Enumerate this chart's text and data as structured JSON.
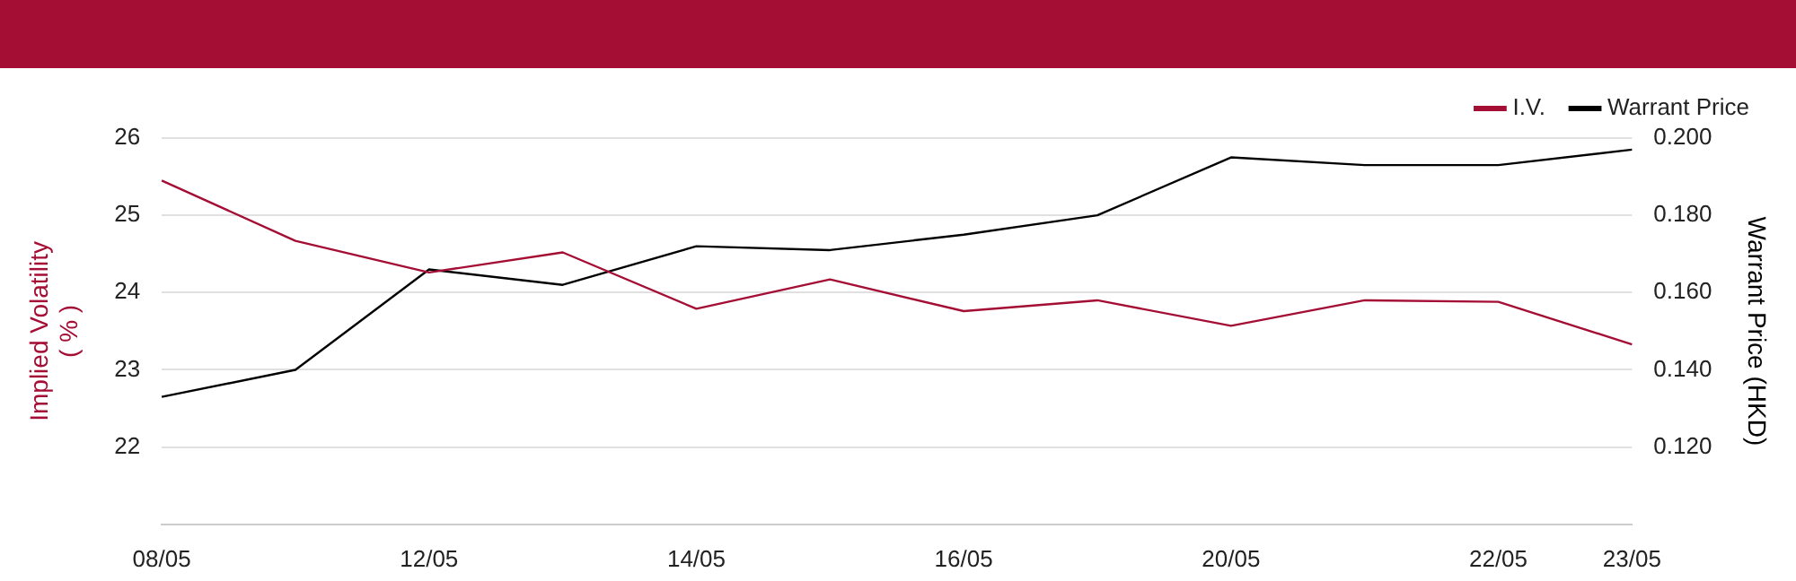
{
  "chart_data": {
    "type": "line",
    "ylabel": "Implied Volatility ( % )",
    "y2label": "Warrant Price (HKD)",
    "categories": [
      "08/05",
      null,
      "12/05",
      null,
      "14/05",
      null,
      "16/05",
      null,
      "20/05",
      null,
      "22/05",
      "23/05"
    ],
    "series": [
      {
        "name": "I.V.",
        "color": "#a50e34",
        "values": [
          25.45,
          24.67,
          24.26,
          24.52,
          23.79,
          24.17,
          23.76,
          23.9,
          23.57,
          23.9,
          23.88,
          23.33
        ]
      },
      {
        "name": "Warrant Price",
        "color": "#000000",
        "axis": "y2",
        "values": [
          0.133,
          0.14,
          0.166,
          0.162,
          0.172,
          0.171,
          0.175,
          0.18,
          0.195,
          0.193,
          0.193,
          0.197
        ]
      }
    ],
    "ylim": [
      21,
      26
    ],
    "yticks": [
      22,
      23,
      24,
      25,
      26
    ],
    "y2lim": [
      0.1,
      0.2
    ],
    "y2ticks": [
      {
        "value": 0.12,
        "label": "0.120"
      },
      {
        "value": 0.14,
        "label": "0.140"
      },
      {
        "value": 0.16,
        "label": "0.160"
      },
      {
        "value": 0.18,
        "label": "0.180"
      },
      {
        "value": 0.2,
        "label": "0.200"
      }
    ],
    "grid": "y",
    "legend": "top right"
  }
}
